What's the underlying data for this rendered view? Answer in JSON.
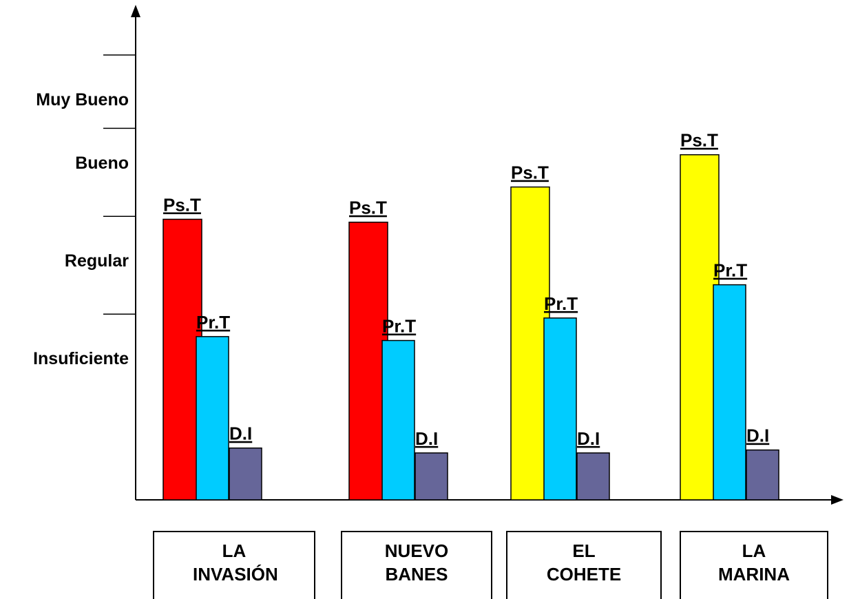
{
  "chart_data": {
    "type": "bar",
    "categories": [
      {
        "line1": "LA",
        "line2": "INVASIÓN"
      },
      {
        "line1": "NUEVO",
        "line2": "BANES"
      },
      {
        "line1": "EL",
        "line2": "COHETE"
      },
      {
        "line1": "LA",
        "line2": "MARINA"
      }
    ],
    "series": [
      {
        "name": "Ps.T",
        "values": [
          2.87,
          2.84,
          3.2,
          3.53
        ],
        "colors": [
          "#ff0000",
          "#ff0000",
          "#ffff00",
          "#ffff00"
        ]
      },
      {
        "name": "Pr.T",
        "values": [
          1.67,
          1.63,
          1.86,
          2.2
        ],
        "colors": [
          "#00ccff",
          "#00ccff",
          "#00ccff",
          "#00ccff"
        ]
      },
      {
        "name": "D.I",
        "values": [
          0.53,
          0.48,
          0.48,
          0.51
        ],
        "colors": [
          "#666699",
          "#666699",
          "#666699",
          "#666699"
        ]
      }
    ],
    "y_tick_labels": [
      "Insuficiente",
      "Regular",
      "Bueno",
      "Muy Bueno"
    ],
    "ylim": [
      0,
      4.6
    ],
    "grid": false,
    "legend": "none"
  }
}
